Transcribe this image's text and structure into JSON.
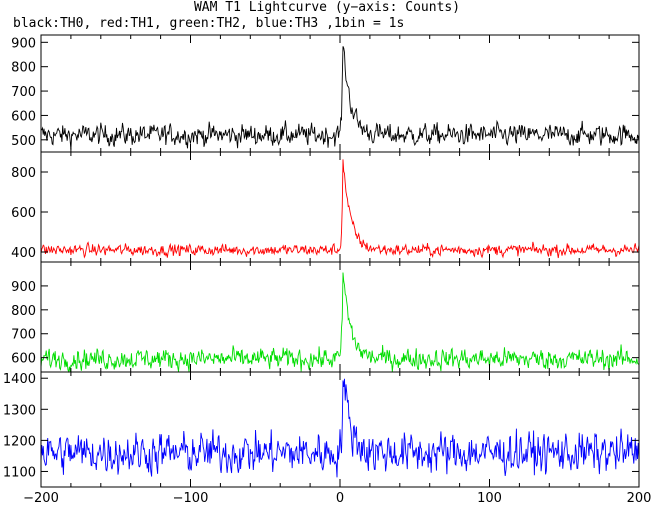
{
  "title": "WAM T1 Lightcurve (y−axis: Counts)",
  "subtitle": "black:TH0, red:TH1, green:TH2, blue:TH3 ,1bin = 1s",
  "chart_data": {
    "type": "line",
    "x_range": [
      -200,
      200
    ],
    "x_ticks": [
      -200,
      -100,
      0,
      100,
      200
    ],
    "x_tick_labels": [
      "−200",
      "−100",
      "0",
      "100",
      "200"
    ],
    "bin_size_s": 1,
    "panels": [
      {
        "color": "#000000",
        "y_range": [
          450,
          930
        ],
        "y_ticks": [
          500,
          600,
          700,
          800,
          900
        ],
        "y_tick_labels": [
          "500",
          "600",
          "700",
          "800",
          "900"
        ],
        "baseline": 520,
        "noise": 30,
        "peak": 900
      },
      {
        "color": "#ff0000",
        "y_range": [
          350,
          900
        ],
        "y_ticks": [
          400,
          600,
          800
        ],
        "y_tick_labels": [
          "400",
          "600",
          "800"
        ],
        "baseline": 410,
        "noise": 20,
        "peak": 860
      },
      {
        "color": "#00dd00",
        "y_range": [
          540,
          1000
        ],
        "y_ticks": [
          600,
          700,
          800,
          900
        ],
        "y_tick_labels": [
          "600",
          "700",
          "800",
          "900"
        ],
        "baseline": 595,
        "noise": 30,
        "peak": 960
      },
      {
        "color": "#0000ff",
        "y_range": [
          1050,
          1420
        ],
        "y_ticks": [
          1100,
          1200,
          1300,
          1400
        ],
        "y_tick_labels": [
          "1100",
          "1200",
          "1300",
          "1400"
        ],
        "baseline": 1160,
        "noise": 45,
        "peak": 1410
      }
    ]
  }
}
